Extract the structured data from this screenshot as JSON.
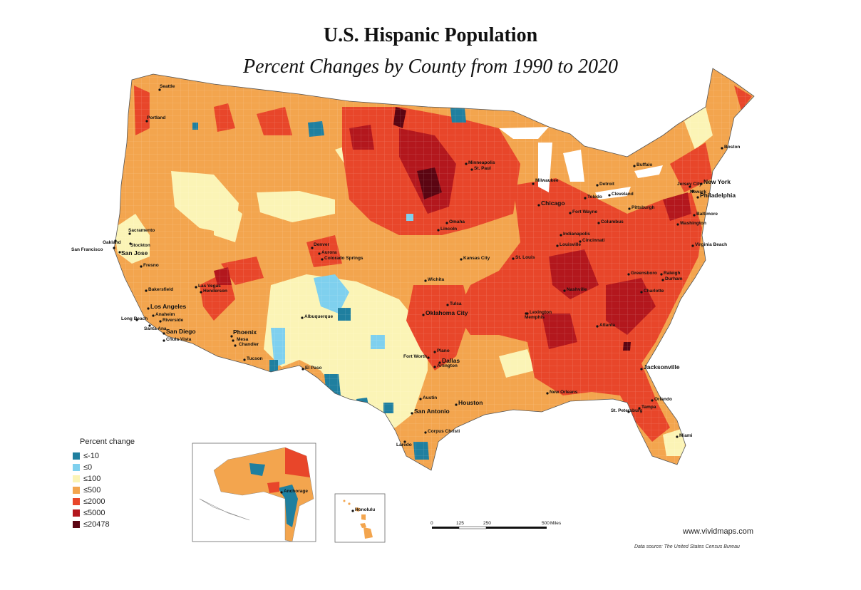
{
  "title": "U.S. Hispanic Population",
  "subtitle": "Percent Changes by County from 1990 to 2020",
  "legend": {
    "title": "Percent change",
    "items": [
      {
        "label": "≤-10",
        "color": "#1f7f9f"
      },
      {
        "label": "≤0",
        "color": "#7fd0ee"
      },
      {
        "label": "≤100",
        "color": "#fbf4b6"
      },
      {
        "label": "≤500",
        "color": "#f3a54e"
      },
      {
        "label": "≤2000",
        "color": "#e8462a"
      },
      {
        "label": "≤5000",
        "color": "#b3171d"
      },
      {
        "label": "≤20478",
        "color": "#5b0512"
      }
    ]
  },
  "scale_bar": {
    "ticks": [
      "0",
      "125",
      "250",
      "500"
    ],
    "unit": "Miles"
  },
  "source_url": "www.vividmaps.com",
  "data_source": "Data source: The United States Census Bureau",
  "cities": [
    {
      "name": "Seattle",
      "big": false
    },
    {
      "name": "Portland",
      "big": false
    },
    {
      "name": "Sacramento",
      "big": false
    },
    {
      "name": "Oakland",
      "big": false
    },
    {
      "name": "Stockton",
      "big": false
    },
    {
      "name": "San Francisco",
      "big": false
    },
    {
      "name": "San Jose",
      "big": true
    },
    {
      "name": "Fresno",
      "big": false
    },
    {
      "name": "Bakersfield",
      "big": false
    },
    {
      "name": "Los Angeles",
      "big": true
    },
    {
      "name": "Long Beach",
      "big": false
    },
    {
      "name": "Anaheim",
      "big": false
    },
    {
      "name": "Riverside",
      "big": false
    },
    {
      "name": "Santa Ana",
      "big": false
    },
    {
      "name": "San Diego",
      "big": true
    },
    {
      "name": "Chula Vista",
      "big": false
    },
    {
      "name": "Las Vegas",
      "big": false
    },
    {
      "name": "Henderson",
      "big": false
    },
    {
      "name": "Phoenix",
      "big": true
    },
    {
      "name": "Mesa",
      "big": false
    },
    {
      "name": "Chandler",
      "big": false
    },
    {
      "name": "Tucson",
      "big": false
    },
    {
      "name": "Denver",
      "big": false
    },
    {
      "name": "Aurora",
      "big": false
    },
    {
      "name": "Colorado Springs",
      "big": false
    },
    {
      "name": "Albuquerque",
      "big": false
    },
    {
      "name": "El Paso",
      "big": false
    },
    {
      "name": "Minneapolis",
      "big": false
    },
    {
      "name": "St. Paul",
      "big": false
    },
    {
      "name": "Omaha",
      "big": false
    },
    {
      "name": "Lincoln",
      "big": false
    },
    {
      "name": "Kansas City",
      "big": false
    },
    {
      "name": "Wichita",
      "big": false
    },
    {
      "name": "Tulsa",
      "big": false
    },
    {
      "name": "Oklahoma City",
      "big": true
    },
    {
      "name": "Fort Worth",
      "big": false
    },
    {
      "name": "Plano",
      "big": false
    },
    {
      "name": "Dallas",
      "big": true
    },
    {
      "name": "Arlington",
      "big": false
    },
    {
      "name": "Austin",
      "big": false
    },
    {
      "name": "San Antonio",
      "big": true
    },
    {
      "name": "Houston",
      "big": true
    },
    {
      "name": "Corpus Christi",
      "big": false
    },
    {
      "name": "Laredo",
      "big": false
    },
    {
      "name": "Milwaukee",
      "big": false
    },
    {
      "name": "Chicago",
      "big": true
    },
    {
      "name": "St. Louis",
      "big": false
    },
    {
      "name": "Indianapolis",
      "big": false
    },
    {
      "name": "Louisville",
      "big": false
    },
    {
      "name": "Lexington",
      "big": false
    },
    {
      "name": "Cincinnati",
      "big": false
    },
    {
      "name": "Columbus",
      "big": false
    },
    {
      "name": "Fort Wayne",
      "big": false
    },
    {
      "name": "Detroit",
      "big": false
    },
    {
      "name": "Toledo",
      "big": false
    },
    {
      "name": "Cleveland",
      "big": false
    },
    {
      "name": "Pittsburgh",
      "big": false
    },
    {
      "name": "Buffalo",
      "big": false
    },
    {
      "name": "Nashville",
      "big": false
    },
    {
      "name": "Memphis",
      "big": false
    },
    {
      "name": "Atlanta",
      "big": false
    },
    {
      "name": "Charlotte",
      "big": false
    },
    {
      "name": "Greensboro",
      "big": false
    },
    {
      "name": "Raleigh",
      "big": false
    },
    {
      "name": "Durham",
      "big": false
    },
    {
      "name": "Virginia Beach",
      "big": false
    },
    {
      "name": "Washington",
      "big": false
    },
    {
      "name": "Baltimore",
      "big": false
    },
    {
      "name": "Philadelphia",
      "big": true
    },
    {
      "name": "Jersey City",
      "big": false
    },
    {
      "name": "Newark",
      "big": false
    },
    {
      "name": "New York",
      "big": true
    },
    {
      "name": "Boston",
      "big": false
    },
    {
      "name": "New Orleans",
      "big": false
    },
    {
      "name": "Jacksonville",
      "big": true
    },
    {
      "name": "Orlando",
      "big": false
    },
    {
      "name": "St. Petersburg",
      "big": false
    },
    {
      "name": "Tampa",
      "big": false
    },
    {
      "name": "Miami",
      "big": false
    },
    {
      "name": "Anchorage",
      "big": false
    },
    {
      "name": "Honolulu",
      "big": false
    }
  ]
}
